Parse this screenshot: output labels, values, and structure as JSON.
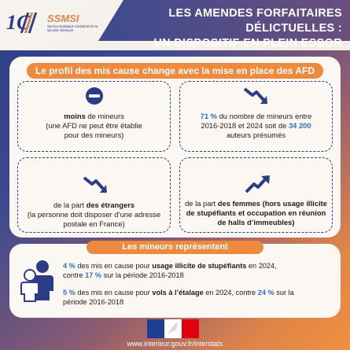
{
  "header": {
    "logo_mark": "1C",
    "logo_brand": "SSMSI",
    "logo_sub": "Service statistique ministériel de la sécurité intérieure",
    "title_line1": "LES AMENDES FORFAITAIRES DÉLICTUELLES :",
    "title_line2": "UN DISPOSITIF EN PLEIN ESSOR"
  },
  "section1": {
    "banner": "Le profil des mis cause change avec la mise en place des AFD",
    "box1": {
      "icon": "minus-circle-icon",
      "bold": "moins",
      "text": " de mineurs",
      "line2": "(une AFD ne peut être établie",
      "line3": "pour des mineurs)"
    },
    "box2": {
      "icon": "trend-down-icon",
      "pct": "71 %",
      "text1": " du nombre de mineurs entre",
      "text2": "2016-2018 et 2024 soit de ",
      "count": "34 200",
      "text3": "auteurs présumés"
    },
    "box3": {
      "icon": "trend-down-icon",
      "text1": "de la part ",
      "bold": "des étrangers",
      "line2": "(la personne doit disposer d’une adresse",
      "line3": "postale en France)"
    },
    "box4": {
      "icon": "trend-up-icon",
      "text1": "de la part ",
      "bold": "des femmes (hors usage illicite",
      "line2": "de stupéfiants et occupation en réunion",
      "line3": "de halls d’immeubles)"
    }
  },
  "section2": {
    "banner": "Les mineurs représentent",
    "icon": "people-icon",
    "p1_pct1": "4 %",
    "p1_text1": " des mis en cause pour ",
    "p1_bold": "usage illicite de stupéfiants",
    "p1_text2": " en 2024,",
    "p1_line2a": "contre ",
    "p1_pct2": "17 %",
    "p1_line2b": " sur la période 2016-2018",
    "p2_pct1": "5 %",
    "p2_text1": " des mis en cause pour ",
    "p2_bold": "vols à l’étalage",
    "p2_text2": " en 2024, contre ",
    "p2_pct2": "24 %",
    "p2_text3": " sur la",
    "p2_line2": "période 2016-2018"
  },
  "footer": {
    "flag_icon": "marianne-flag-icon",
    "url": "www.interieur.gouv.fr/interstats"
  },
  "colors": {
    "navy": "#2c3c86",
    "orange": "#ee8a3e",
    "accent_blue": "#2d6fd2"
  }
}
